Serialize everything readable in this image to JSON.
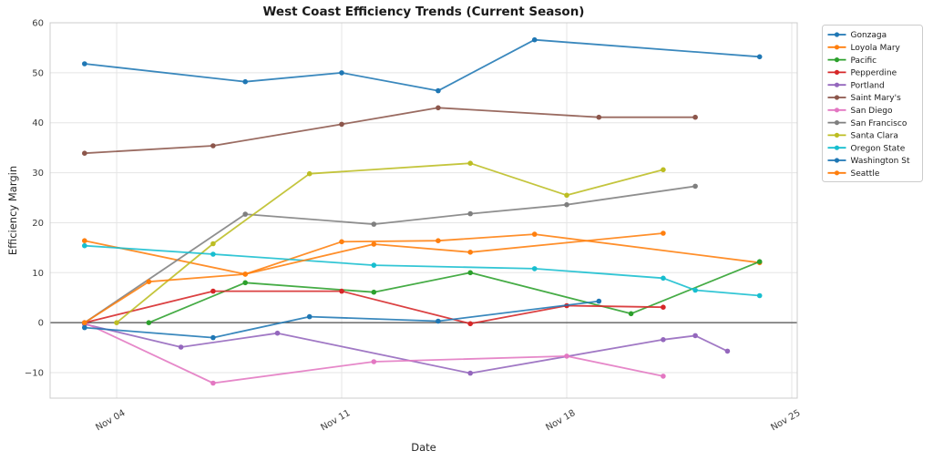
{
  "chart_data": {
    "type": "line",
    "title": "West Coast Efficiency Trends (Current Season)",
    "xlabel": "Date",
    "ylabel": "Efficiency Margin",
    "x_axis": {
      "unit": "day of November",
      "tick_days": [
        4,
        11,
        18,
        25
      ],
      "tick_labels": [
        "Nov 04",
        "Nov 11",
        "Nov 18",
        "Nov 25"
      ],
      "range_days": [
        1.93,
        25.17
      ],
      "tick_rotation_deg": 30
    },
    "y_axis": {
      "ticks": [
        -10,
        0,
        10,
        20,
        30,
        40,
        50,
        60
      ],
      "range": [
        -15.1,
        60
      ]
    },
    "grid": true,
    "zero_line": true,
    "zero_line_color": "#4d4d4d",
    "grid_color": "#e5e5e5",
    "spine_color": "#cccccc",
    "legend_position": "outside-right",
    "point_format": "[day_of_november, efficiency_margin]",
    "series": [
      {
        "name": "Gonzaga",
        "color": "#1f77b4",
        "points": [
          [
            3,
            51.8
          ],
          [
            8,
            48.2
          ],
          [
            11,
            50.0
          ],
          [
            14,
            46.4
          ],
          [
            17,
            56.6
          ],
          [
            24,
            53.2
          ]
        ]
      },
      {
        "name": "Loyola Mary",
        "color": "#ff7f0e",
        "points": [
          [
            3,
            16.4
          ],
          [
            8,
            9.7
          ],
          [
            11,
            16.2
          ],
          [
            14,
            16.4
          ],
          [
            17,
            17.7
          ],
          [
            24,
            12.0
          ]
        ]
      },
      {
        "name": "Pacific",
        "color": "#2ca02c",
        "points": [
          [
            5,
            0
          ],
          [
            8,
            8.0
          ],
          [
            12,
            6.1
          ],
          [
            15,
            10.0
          ],
          [
            20,
            1.8
          ],
          [
            24,
            12.2
          ]
        ]
      },
      {
        "name": "Pepperdine",
        "color": "#d62728",
        "points": [
          [
            3,
            0
          ],
          [
            7,
            6.3
          ],
          [
            11,
            6.3
          ],
          [
            15,
            -0.2
          ],
          [
            18,
            3.4
          ],
          [
            21,
            3.1
          ]
        ]
      },
      {
        "name": "Portland",
        "color": "#9467bd",
        "points": [
          [
            3,
            -0.3
          ],
          [
            6,
            -4.9
          ],
          [
            9,
            -2.1
          ],
          [
            15,
            -10.1
          ],
          [
            21,
            -3.4
          ],
          [
            22,
            -2.6
          ],
          [
            23,
            -5.7
          ]
        ]
      },
      {
        "name": "Saint Mary's",
        "color": "#8c564b",
        "points": [
          [
            3,
            33.9
          ],
          [
            7,
            35.4
          ],
          [
            11,
            39.7
          ],
          [
            14,
            43.0
          ],
          [
            19,
            41.1
          ],
          [
            22,
            41.1
          ]
        ]
      },
      {
        "name": "San Diego",
        "color": "#e377c2",
        "points": [
          [
            3,
            0
          ],
          [
            7,
            -12.1
          ],
          [
            12,
            -7.8
          ],
          [
            18,
            -6.7
          ],
          [
            21,
            -10.7
          ]
        ]
      },
      {
        "name": "San Francisco",
        "color": "#7f7f7f",
        "points": [
          [
            3,
            0
          ],
          [
            8,
            21.7
          ],
          [
            12,
            19.7
          ],
          [
            15,
            21.8
          ],
          [
            18,
            23.6
          ],
          [
            22,
            27.3
          ]
        ]
      },
      {
        "name": "Santa Clara",
        "color": "#bcbd22",
        "points": [
          [
            4,
            0
          ],
          [
            7,
            15.8
          ],
          [
            10,
            29.8
          ],
          [
            15,
            31.9
          ],
          [
            18,
            25.5
          ],
          [
            21,
            30.6
          ]
        ]
      },
      {
        "name": "Oregon State",
        "color": "#17becf",
        "points": [
          [
            3,
            15.4
          ],
          [
            7,
            13.7
          ],
          [
            12,
            11.5
          ],
          [
            17,
            10.8
          ],
          [
            21,
            8.9
          ],
          [
            22,
            6.5
          ],
          [
            24,
            5.4
          ]
        ]
      },
      {
        "name": "Washington St",
        "color": "#1f77b4",
        "points": [
          [
            3,
            -1.0
          ],
          [
            7,
            -3.0
          ],
          [
            10,
            1.2
          ],
          [
            14,
            0.3
          ],
          [
            19,
            4.3
          ]
        ]
      },
      {
        "name": "Seattle",
        "color": "#ff7f0e",
        "points": [
          [
            3,
            0
          ],
          [
            5,
            8.2
          ],
          [
            8,
            9.7
          ],
          [
            12,
            15.7
          ],
          [
            15,
            14.1
          ],
          [
            21,
            17.9
          ]
        ]
      }
    ]
  }
}
